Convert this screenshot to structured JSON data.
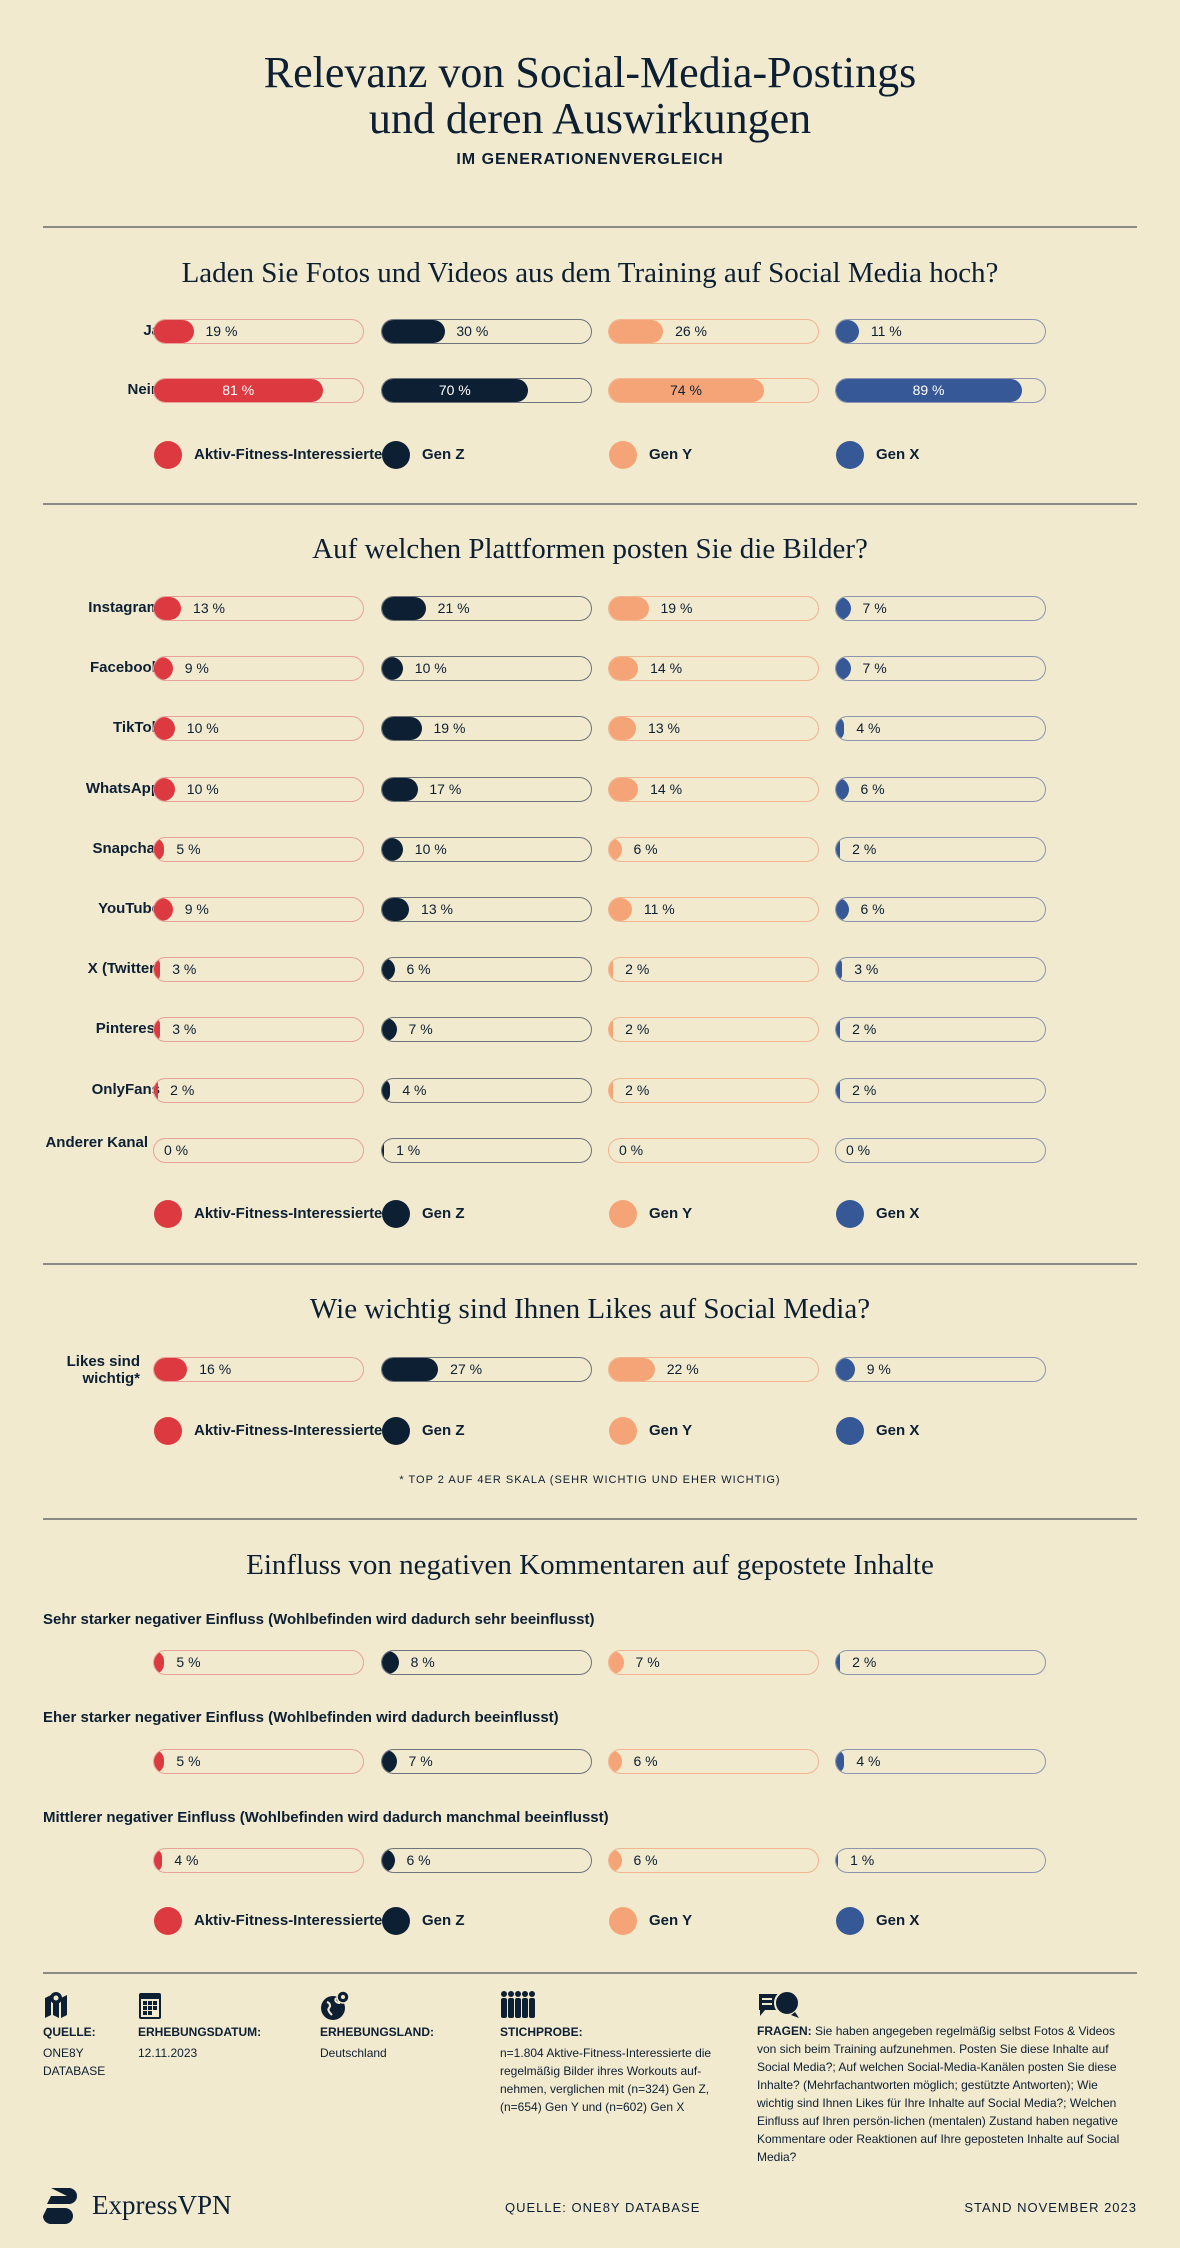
{
  "header": {
    "title_line1": "Relevanz von Social-Media-Postings",
    "title_line2": "und deren Auswirkungen",
    "subtitle": "IM GENERATIONENVERGLEICH"
  },
  "colors": {
    "background": "#f1eacf",
    "aktiv": "#dc3a40",
    "gen_z": "#0d1f33",
    "gen_y": "#f4a476",
    "gen_x": "#365896"
  },
  "legend": [
    "Aktiv-Fitness-Interessierte",
    "Gen Z",
    "Gen Y",
    "Gen X"
  ],
  "chart_data": [
    {
      "type": "bar",
      "title": "Laden Sie Fotos und Videos aus dem Training auf Social Media hoch?",
      "unit": "%",
      "series_names": [
        "Aktiv-Fitness-Interessierte",
        "Gen Z",
        "Gen Y",
        "Gen X"
      ],
      "rows": [
        {
          "label": "Ja",
          "values": [
            19,
            30,
            26,
            11
          ]
        },
        {
          "label": "Nein",
          "values": [
            81,
            70,
            74,
            89
          ]
        }
      ]
    },
    {
      "type": "bar",
      "title": "Auf welchen Plattformen posten Sie die Bilder?",
      "unit": "%",
      "series_names": [
        "Aktiv-Fitness-Interessierte",
        "Gen Z",
        "Gen Y",
        "Gen X"
      ],
      "rows": [
        {
          "label": "Instagram",
          "values": [
            13,
            21,
            19,
            7
          ]
        },
        {
          "label": "Facebook",
          "values": [
            9,
            10,
            14,
            7
          ]
        },
        {
          "label": "TikTok",
          "values": [
            10,
            19,
            13,
            4
          ]
        },
        {
          "label": "WhatsApp",
          "values": [
            10,
            17,
            14,
            6
          ]
        },
        {
          "label": "Snapchat",
          "values": [
            5,
            10,
            6,
            2
          ]
        },
        {
          "label": "YouTube",
          "values": [
            9,
            13,
            11,
            6
          ]
        },
        {
          "label": "X (Twitter)",
          "values": [
            3,
            6,
            2,
            3
          ]
        },
        {
          "label": "Pinterest",
          "values": [
            3,
            7,
            2,
            2
          ]
        },
        {
          "label": "OnlyFans",
          "values": [
            2,
            4,
            2,
            2
          ]
        },
        {
          "label": "Anderer Kanal",
          "values": [
            0,
            1,
            0,
            0
          ]
        }
      ]
    },
    {
      "type": "bar",
      "title": "Wie wichtig sind Ihnen Likes auf Social Media?",
      "unit": "%",
      "series_names": [
        "Aktiv-Fitness-Interessierte",
        "Gen Z",
        "Gen Y",
        "Gen X"
      ],
      "rows": [
        {
          "label": "Likes sind wichtig*",
          "values": [
            16,
            27,
            22,
            9
          ]
        }
      ],
      "footnote": "* TOP 2 AUF 4ER SKALA (SEHR WICHTIG UND EHER WICHTIG)"
    },
    {
      "type": "bar",
      "title": "Einfluss von negativen Kommentaren auf gepostete Inhalte",
      "unit": "%",
      "series_names": [
        "Aktiv-Fitness-Interessierte",
        "Gen Z",
        "Gen Y",
        "Gen X"
      ],
      "rows": [
        {
          "label": "Sehr starker negativer Einfluss (Wohlbefinden wird dadurch sehr beeinflusst)",
          "values": [
            5,
            8,
            7,
            2
          ]
        },
        {
          "label": "Eher starker negativer Einfluss (Wohlbefinden wird dadurch beeinflusst)",
          "values": [
            5,
            7,
            6,
            4
          ]
        },
        {
          "label": "Mittlerer negativer Einfluss (Wohlbefinden wird dadurch manchmal beeinflusst)",
          "values": [
            4,
            6,
            6,
            1
          ]
        }
      ]
    }
  ],
  "footer": {
    "quelle": {
      "label": "QUELLE:",
      "value": "ONE8Y DATABASE",
      "icon": "map-pin-icon"
    },
    "datum": {
      "label": "ERHEBUNGSDATUM:",
      "value": "12.11.2023",
      "icon": "calendar-icon"
    },
    "land": {
      "label": "ERHEBUNGSLAND:",
      "value": "Deutschland",
      "icon": "globe-pin-icon"
    },
    "stichprobe": {
      "label": "STICHPROBE:",
      "value": "n=1.804 Aktive-Fitness-Interessierte die regelmäßig Bilder ihres Workouts auf-nehmen, verglichen mit (n=324) Gen Z, (n=654) Gen Y und (n=602) Gen X",
      "icon": "people-icon"
    },
    "fragen": {
      "label": "FRAGEN:",
      "value": "Sie haben angegeben regelmäßig selbst Fotos & Videos von sich beim Training aufzunehmen. Posten Sie diese Inhalte auf Social Media?; Auf welchen Social-Media-Kanälen posten Sie diese Inhalte? (Mehrfachantworten möglich; gestützte Antworten); Wie wichtig sind Ihnen Likes für Ihre Inhalte auf Social Media?; Welchen Einfluss auf Ihren persön-lichen (mentalen) Zustand haben negative Kommentare oder Reaktionen auf Ihre geposteten Inhalte auf Social Media?",
      "icon": "speech-bubbles-icon"
    },
    "brand": "ExpressVPN",
    "source_center": "QUELLE: ONE8Y DATABASE",
    "stand": "STAND NOVEMBER 2023"
  }
}
